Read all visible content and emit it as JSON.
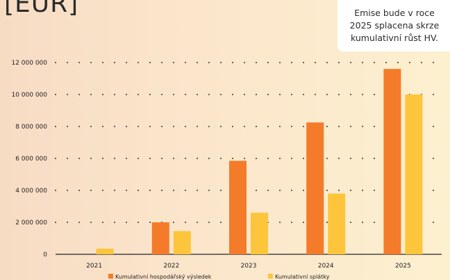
{
  "header": {
    "title_fragment": "[EUR]",
    "note": "Emise bude v roce 2025 splacena skrze kumulativní růst HV."
  },
  "chart_data": {
    "type": "bar",
    "categories": [
      "2021",
      "2022",
      "2023",
      "2024",
      "2025"
    ],
    "series": [
      {
        "name": "Kumulativní hospodářský výsledek",
        "color": "#f47b2a",
        "values": [
          0,
          2000000,
          5850000,
          8250000,
          11600000
        ]
      },
      {
        "name": "Kumulativní splátky",
        "color": "#fdc53b",
        "values": [
          350000,
          1450000,
          2600000,
          3800000,
          10000000
        ]
      }
    ],
    "yticks": [
      0,
      2000000,
      4000000,
      6000000,
      8000000,
      10000000,
      12000000
    ],
    "ytick_labels": [
      "0",
      "2 000 000",
      "4 000 000",
      "6 000 000",
      "8 000 000",
      "10 000 000",
      "12 000 000"
    ],
    "ylim": [
      0,
      12000000
    ],
    "grid": true,
    "legend_position": "bottom"
  }
}
